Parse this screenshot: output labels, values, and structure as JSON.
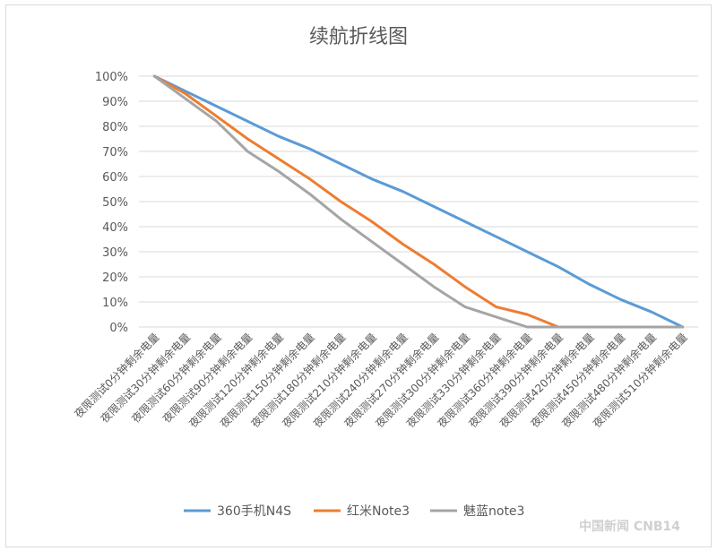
{
  "chart_data": {
    "type": "line",
    "title": "续航折线图",
    "categories": [
      "夜限测试0分钟剩余电量",
      "夜限测试30分钟剩余电量",
      "夜限测试60分钟剩余电量",
      "夜限测试90分钟剩余电量",
      "夜限测试120分钟剩余电量",
      "夜限测试150分钟剩余电量",
      "夜限测试180分钟剩余电量",
      "夜限测试210分钟剩余电量",
      "夜限测试240分钟剩余电量",
      "夜限测试270分钟剩余电量",
      "夜限测试300分钟剩余电量",
      "夜限测试330分钟剩余电量",
      "夜限测试360分钟剩余电量",
      "夜限测试390分钟剩余电量",
      "夜限测试420分钟剩余电量",
      "夜限测试450分钟剩余电量",
      "夜限测试480分钟剩余电量",
      "夜限测试510分钟剩余电量"
    ],
    "series": [
      {
        "name": "360手机N4S",
        "color": "#5b9bd5",
        "values": [
          100,
          94,
          88,
          82,
          76,
          71,
          65,
          59,
          54,
          48,
          42,
          36,
          30,
          24,
          17,
          11,
          6,
          0
        ]
      },
      {
        "name": "红米Note3",
        "color": "#ed7d31",
        "values": [
          100,
          93,
          84,
          75,
          67,
          59,
          50,
          42,
          33,
          25,
          16,
          8,
          5,
          0,
          0,
          0,
          0,
          0
        ]
      },
      {
        "name": "魅蓝note3",
        "color": "#a5a5a5",
        "values": [
          100,
          91,
          82,
          70,
          62,
          53,
          43,
          34,
          25,
          16,
          8,
          4,
          0,
          0,
          0,
          0,
          0,
          0
        ]
      }
    ],
    "ylabel": "",
    "xlabel": "",
    "ylim": [
      0,
      100
    ],
    "yticks": [
      "0%",
      "10%",
      "20%",
      "30%",
      "40%",
      "50%",
      "60%",
      "70%",
      "80%",
      "90%",
      "100%"
    ],
    "grid": true,
    "legend": "bottom"
  },
  "watermark": "中国新闻 CNB14"
}
